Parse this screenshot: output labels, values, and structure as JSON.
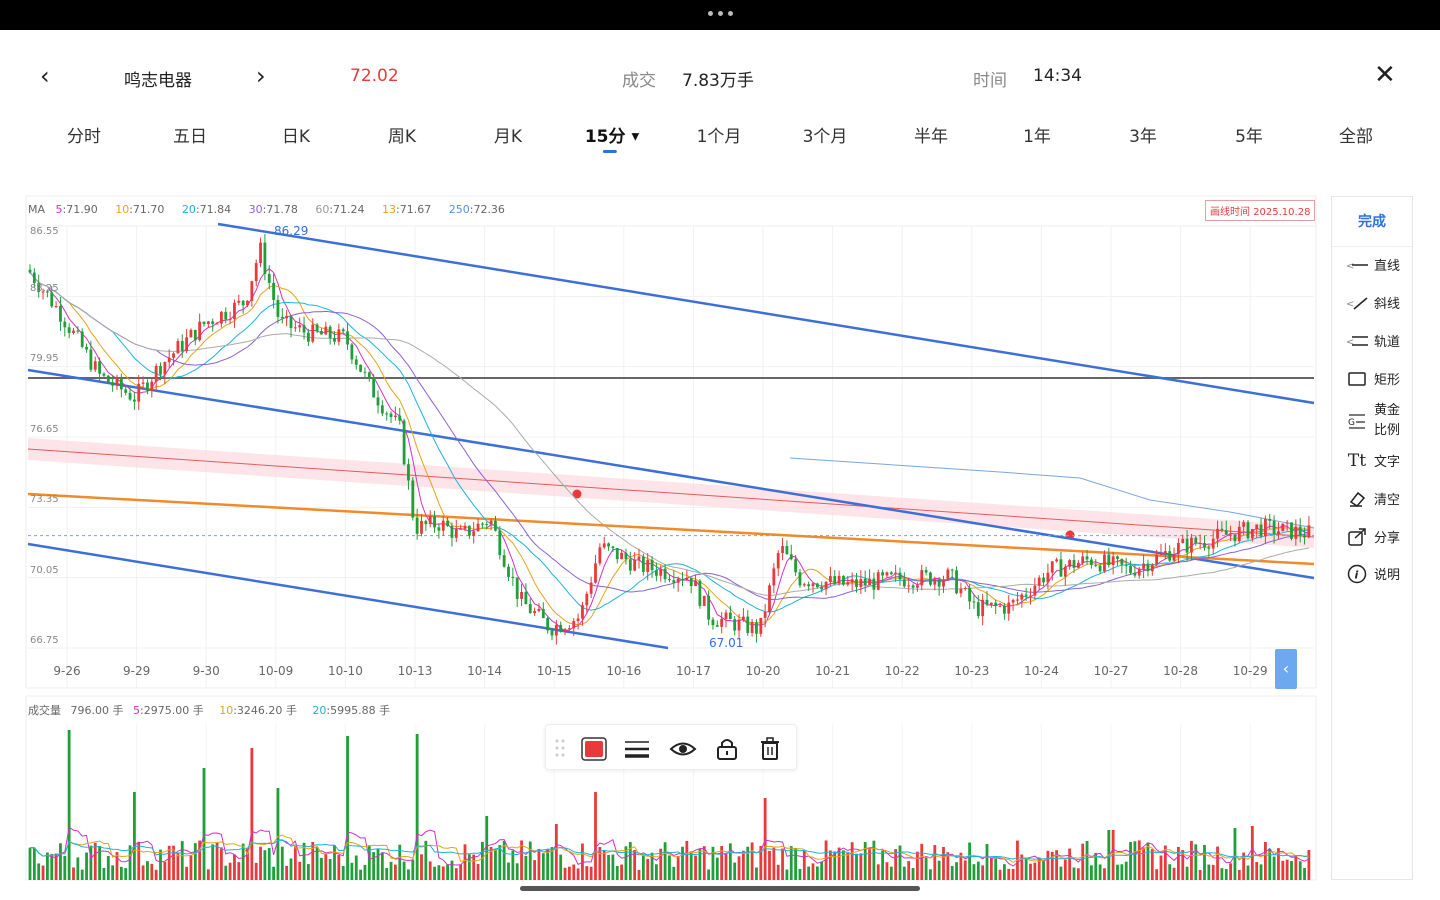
{
  "header": {
    "stock_name": "鸣志电器",
    "price": "72.02",
    "volume_label": "成交",
    "volume_value": "7.83万手",
    "time_label": "时间",
    "time_value": "14:34"
  },
  "tabs": [
    {
      "label": "分时"
    },
    {
      "label": "五日"
    },
    {
      "label": "日K"
    },
    {
      "label": "周K"
    },
    {
      "label": "月K"
    },
    {
      "label": "15分"
    },
    {
      "label": "1个月"
    },
    {
      "label": "3个月"
    },
    {
      "label": "半年"
    },
    {
      "label": "1年"
    },
    {
      "label": "3年"
    },
    {
      "label": "5年"
    },
    {
      "label": "全部"
    }
  ],
  "ma": {
    "label": "MA",
    "items": [
      {
        "key": "5",
        "val": ":71.90",
        "color": "#d62fc4"
      },
      {
        "key": "10",
        "val": ":71.70",
        "color": "#e8a317"
      },
      {
        "key": "20",
        "val": ":71.84",
        "color": "#1bb5d6"
      },
      {
        "key": "30",
        "val": ":71.78",
        "color": "#8d5fd3"
      },
      {
        "key": "60",
        "val": ":71.24",
        "color": "#999999"
      },
      {
        "key": "13",
        "val": ":71.67",
        "color": "#e8a317"
      },
      {
        "key": "250",
        "val": ":72.36",
        "color": "#5b8fd9"
      }
    ]
  },
  "draw_time": "画线时间 2025.10.28",
  "chart_data": {
    "type": "candlestick",
    "y_ticks": [
      "86.55",
      "83.25",
      "79.95",
      "76.65",
      "73.35",
      "70.05",
      "66.75"
    ],
    "x_ticks": [
      "9-26",
      "9-29",
      "9-30",
      "10-09",
      "10-10",
      "10-13",
      "10-14",
      "10-15",
      "10-16",
      "10-17",
      "10-20",
      "10-21",
      "10-22",
      "10-23",
      "10-24",
      "10-27",
      "10-28",
      "10-29"
    ],
    "ylim": [
      66.75,
      86.55
    ],
    "high_label": "86.29",
    "low_label": "67.01",
    "reference_price": 72.02
  },
  "volume": {
    "label": "成交量",
    "current": "796.00 手",
    "items": [
      {
        "key": "5",
        "val": ":2975.00 手",
        "color": "#d62fc4"
      },
      {
        "key": "10",
        "val": ":3246.20 手",
        "color": "#e8a317"
      },
      {
        "key": "20",
        "val": ":5995.88 手",
        "color": "#1bb5d6"
      }
    ]
  },
  "sidebar": {
    "done": "完成",
    "items": [
      {
        "label": "直线",
        "icon": "line-icon"
      },
      {
        "label": "斜线",
        "icon": "slash-icon"
      },
      {
        "label": "轨道",
        "icon": "channel-icon"
      },
      {
        "label": "矩形",
        "icon": "rect-icon"
      },
      {
        "label": "黄金\n比例",
        "icon": "golden-ratio-icon"
      },
      {
        "label": "文字",
        "icon": "text-icon"
      },
      {
        "label": "清空",
        "icon": "eraser-icon"
      },
      {
        "label": "分享",
        "icon": "share-icon"
      },
      {
        "label": "说明",
        "icon": "info-icon"
      }
    ]
  },
  "colors": {
    "up": "#e83a3a",
    "down": "#1f9e3a",
    "accent": "#2f6fe0",
    "trend_blue": "#3c6fd8",
    "trend_orange": "#f08a2a"
  }
}
